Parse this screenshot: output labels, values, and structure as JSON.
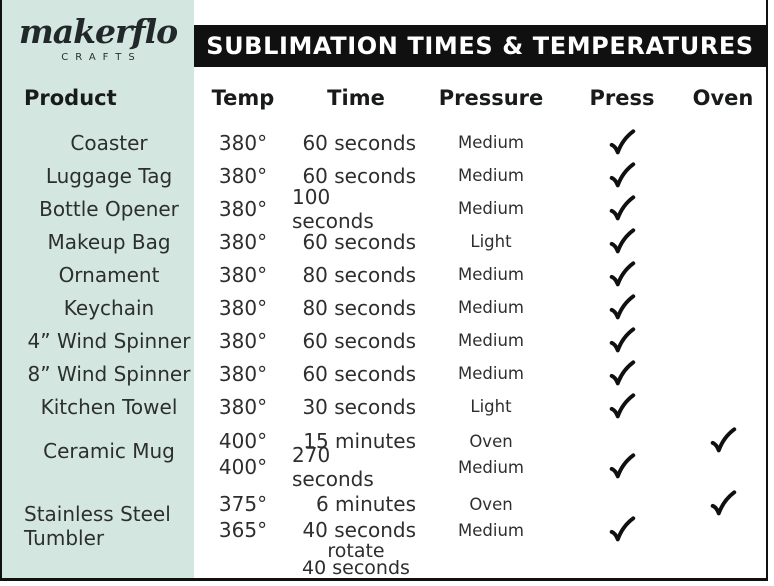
{
  "brand": {
    "name": "makerflo",
    "sub": "CRAFTS"
  },
  "banner": {
    "title": "SUBLIMATION TIMES & TEMPERATURES"
  },
  "colors": {
    "sidebar_mint": "#d3e7e0",
    "banner_black": "#101010",
    "text": "#2d2f2e"
  },
  "icons": {
    "press_check": "checkmark",
    "oven_check": "checkmark"
  },
  "table": {
    "columns": {
      "product": "Product",
      "temp": "Temp",
      "time": "Time",
      "pressure": "Pressure",
      "press": "Press",
      "oven": "Oven"
    },
    "rows": [
      {
        "product": "Coaster",
        "lines": [
          {
            "temp": "380°",
            "time": [
              "60 seconds"
            ],
            "pressure": "Medium",
            "press": true,
            "oven": false
          }
        ]
      },
      {
        "product": "Luggage Tag",
        "lines": [
          {
            "temp": "380°",
            "time": [
              "60 seconds"
            ],
            "pressure": "Medium",
            "press": true,
            "oven": false
          }
        ]
      },
      {
        "product": "Bottle Opener",
        "lines": [
          {
            "temp": "380°",
            "time": [
              "100 seconds"
            ],
            "pressure": "Medium",
            "press": true,
            "oven": false
          }
        ]
      },
      {
        "product": "Makeup Bag",
        "lines": [
          {
            "temp": "380°",
            "time": [
              "60 seconds"
            ],
            "pressure": "Light",
            "press": true,
            "oven": false
          }
        ]
      },
      {
        "product": "Ornament",
        "lines": [
          {
            "temp": "380°",
            "time": [
              "80 seconds"
            ],
            "pressure": "Medium",
            "press": true,
            "oven": false
          }
        ]
      },
      {
        "product": "Keychain",
        "lines": [
          {
            "temp": "380°",
            "time": [
              "80 seconds"
            ],
            "pressure": "Medium",
            "press": true,
            "oven": false
          }
        ]
      },
      {
        "product": "4” Wind Spinner",
        "lines": [
          {
            "temp": "380°",
            "time": [
              "60 seconds"
            ],
            "pressure": "Medium",
            "press": true,
            "oven": false
          }
        ]
      },
      {
        "product": "8” Wind Spinner",
        "lines": [
          {
            "temp": "380°",
            "time": [
              "60 seconds"
            ],
            "pressure": "Medium",
            "press": true,
            "oven": false
          }
        ]
      },
      {
        "product": "Kitchen Towel",
        "lines": [
          {
            "temp": "380°",
            "time": [
              "30 seconds"
            ],
            "pressure": "Light",
            "press": true,
            "oven": false
          }
        ]
      },
      {
        "product": "Ceramic Mug",
        "spacing": "sm",
        "lines": [
          {
            "temp": "400°",
            "time": [
              "15 minutes"
            ],
            "pressure": "Oven",
            "press": false,
            "oven": true
          },
          {
            "temp": "400°",
            "time": [
              "270 seconds"
            ],
            "pressure": "Medium",
            "press": true,
            "oven": false
          }
        ]
      },
      {
        "product": "Stainless Steel Tumbler",
        "spacing": "md",
        "lines": [
          {
            "temp": "375°",
            "time": [
              "6 minutes"
            ],
            "pressure": "Oven",
            "press": false,
            "oven": true
          },
          {
            "temp": "365°",
            "time": [
              "40 seconds",
              "rotate",
              "40 seconds"
            ],
            "pressure": "Medium",
            "press": true,
            "oven": false
          }
        ]
      }
    ]
  }
}
